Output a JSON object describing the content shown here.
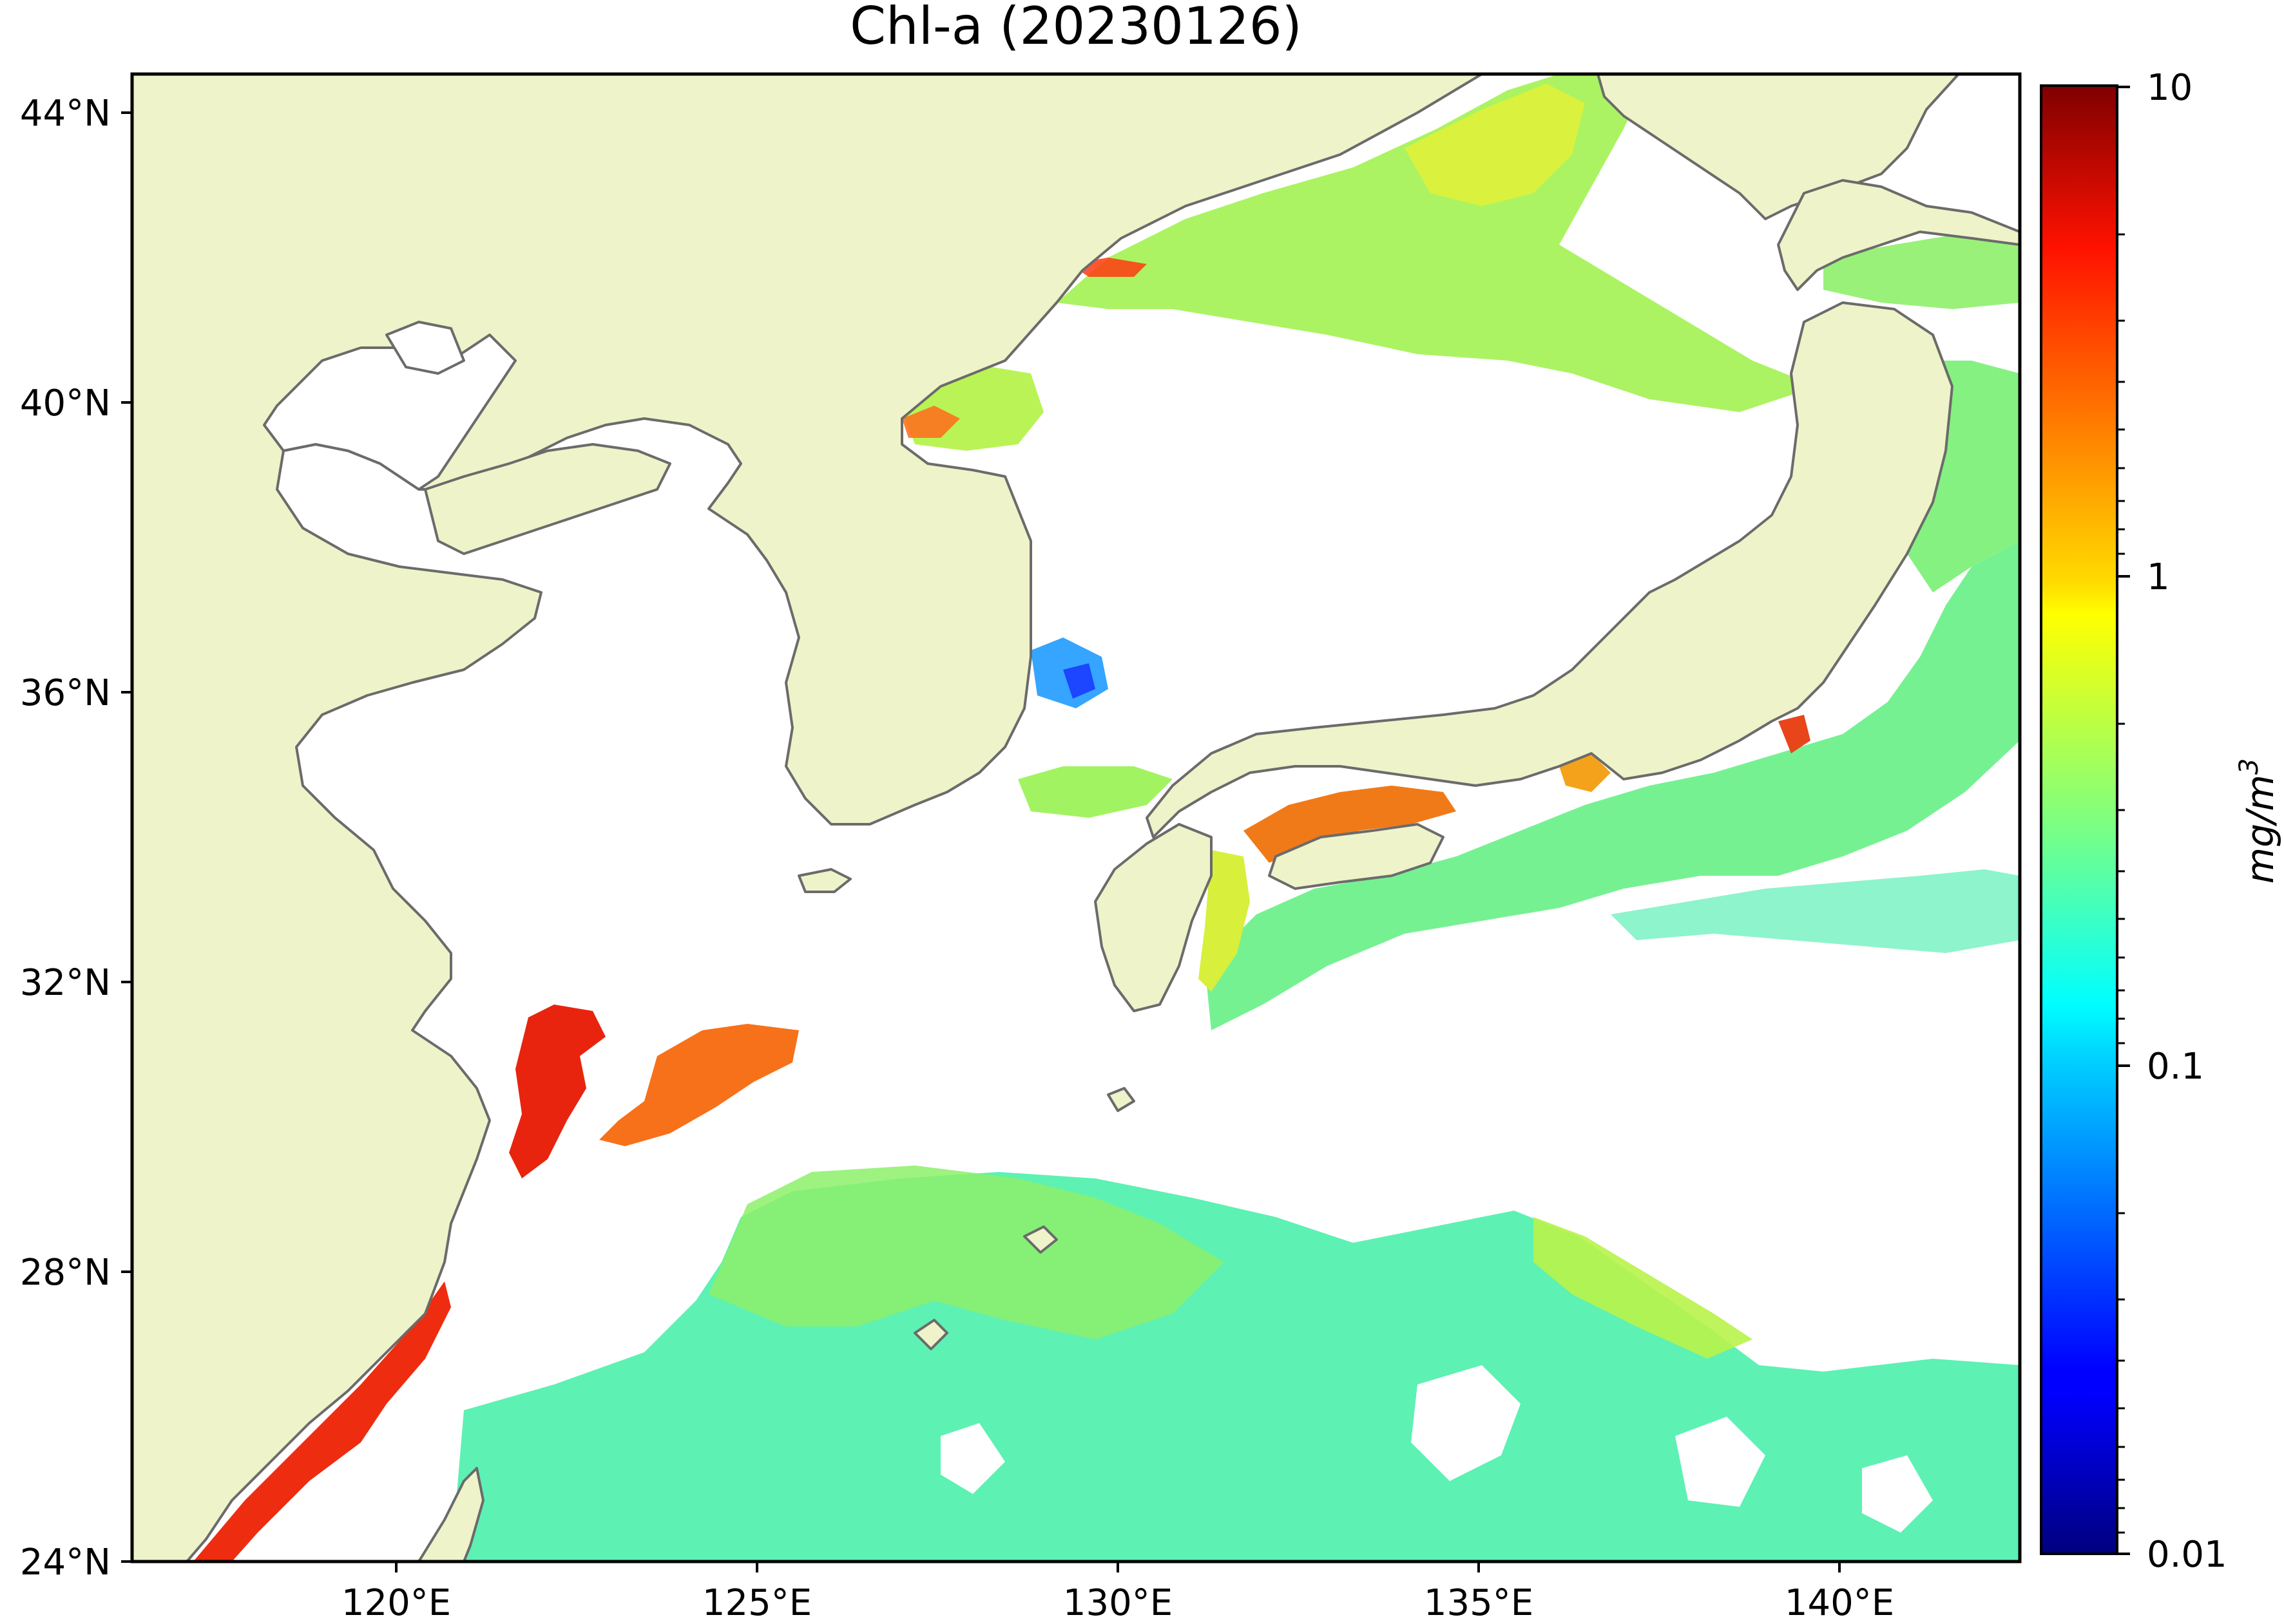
{
  "title": "Chl-a (20230126)",
  "colorbar": {
    "unit_base": "mg/m",
    "unit_exponent": "3",
    "ticks": [
      "10",
      "1",
      "0.1",
      "0.01"
    ],
    "scale": "log",
    "range": [
      0.01,
      10
    ],
    "colormap": "jet"
  },
  "axes": {
    "lat_labels": [
      "44°N",
      "40°N",
      "36°N",
      "32°N",
      "28°N",
      "24°N"
    ],
    "lon_labels": [
      "120°E",
      "125°E",
      "130°E",
      "135°E",
      "140°E"
    ]
  },
  "colors": {
    "land": "#eff3c9",
    "ocean_nodata": "#ffffff",
    "coastline": "#6b6b6b",
    "frame": "#000000"
  },
  "chart_data": {
    "type": "heatmap",
    "title": "Chl-a (20230126)",
    "xlabel": "",
    "ylabel": "",
    "x_ticks": [
      "120°E",
      "125°E",
      "130°E",
      "135°E",
      "140°E"
    ],
    "y_ticks": [
      "44°N",
      "40°N",
      "36°N",
      "32°N",
      "28°N",
      "24°N"
    ],
    "xlim": [
      116.6,
      143.0
    ],
    "ylim": [
      24.0,
      44.4
    ],
    "colorbar_label": "mg/m3",
    "colorbar_ticks": [
      0.01,
      0.1,
      1,
      10
    ],
    "colorbar_scale": "log"
  }
}
